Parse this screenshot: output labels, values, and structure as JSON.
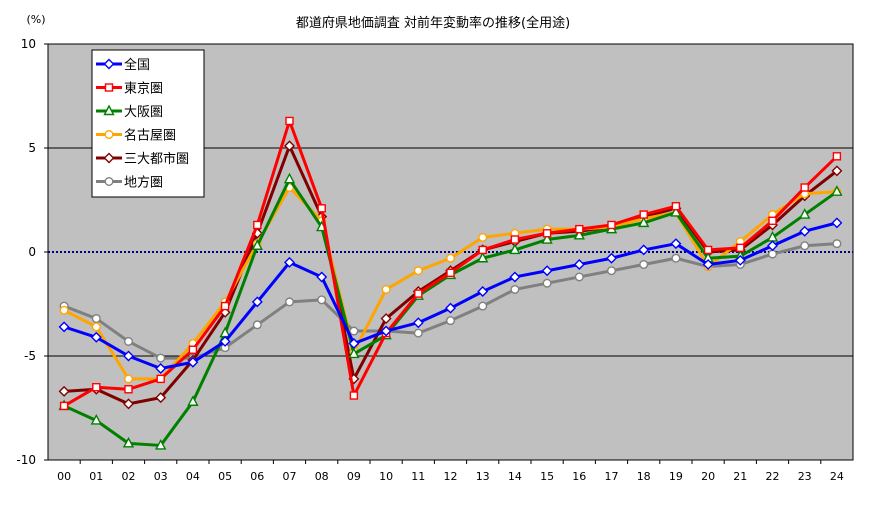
{
  "chart_data": {
    "type": "line",
    "title": "都道府県地価調査 対前年変動率の推移(全用途)",
    "ylabel": "(%)",
    "xlabel": "",
    "ylim": [
      -10,
      10
    ],
    "yticks": [
      10,
      5,
      0,
      -5,
      -10
    ],
    "x": [
      "00",
      "01",
      "02",
      "03",
      "04",
      "05",
      "06",
      "07",
      "08",
      "09",
      "10",
      "11",
      "12",
      "13",
      "14",
      "15",
      "16",
      "17",
      "18",
      "19",
      "20",
      "21",
      "22",
      "23",
      "24"
    ],
    "grid": true,
    "zero_line": "dotted-navy",
    "legend_position": "top-left",
    "plot_background": "#c0c0c0",
    "series": [
      {
        "name": "全国",
        "color": "#0000ff",
        "marker": "diamond",
        "values": [
          -3.6,
          -4.1,
          -5.0,
          -5.6,
          -5.3,
          -4.3,
          -2.4,
          -0.5,
          -1.2,
          -4.4,
          -3.8,
          -3.4,
          -2.7,
          -1.9,
          -1.2,
          -0.9,
          -0.6,
          -0.3,
          0.1,
          0.4,
          -0.6,
          -0.4,
          0.3,
          1.0,
          1.4
        ]
      },
      {
        "name": "東京圏",
        "color": "#ff0000",
        "marker": "square",
        "values": [
          -7.4,
          -6.5,
          -6.6,
          -6.1,
          -4.7,
          -2.6,
          1.3,
          6.3,
          2.1,
          -6.9,
          -3.9,
          -2.0,
          -1.0,
          0.1,
          0.6,
          0.9,
          1.1,
          1.3,
          1.8,
          2.2,
          0.1,
          0.2,
          1.5,
          3.1,
          4.6
        ]
      },
      {
        "name": "大阪圏",
        "color": "#008000",
        "marker": "triangle",
        "values": [
          -7.4,
          -8.1,
          -9.2,
          -9.3,
          -7.2,
          -3.9,
          0.3,
          3.5,
          1.2,
          -4.9,
          -4.0,
          -2.1,
          -1.1,
          -0.3,
          0.1,
          0.6,
          0.8,
          1.1,
          1.4,
          1.9,
          -0.3,
          -0.2,
          0.7,
          1.8,
          2.9
        ]
      },
      {
        "name": "名古屋圏",
        "color": "#ffa500",
        "marker": "circle",
        "values": [
          -2.8,
          -3.6,
          -6.1,
          -6.1,
          -4.4,
          -2.4,
          0.4,
          3.1,
          1.5,
          -4.8,
          -1.8,
          -0.9,
          -0.3,
          0.7,
          0.9,
          1.1,
          1.1,
          1.2,
          1.6,
          1.9,
          -0.7,
          0.5,
          1.8,
          2.8,
          2.9
        ]
      },
      {
        "name": "三大都市圏",
        "color": "#800000",
        "marker": "diamond",
        "values": [
          -6.7,
          -6.6,
          -7.3,
          -7.0,
          -5.2,
          -2.9,
          0.9,
          5.1,
          1.7,
          -6.1,
          -3.2,
          -1.9,
          -0.9,
          0.1,
          0.5,
          0.9,
          1.0,
          1.2,
          1.7,
          2.1,
          0.0,
          0.1,
          1.3,
          2.7,
          3.9
        ]
      },
      {
        "name": "地方圏",
        "color": "#808080",
        "marker": "circle",
        "values": [
          -2.6,
          -3.2,
          -4.3,
          -5.1,
          -5.1,
          -4.6,
          -3.5,
          -2.4,
          -2.3,
          -3.8,
          -3.8,
          -3.9,
          -3.3,
          -2.6,
          -1.8,
          -1.5,
          -1.2,
          -0.9,
          -0.6,
          -0.3,
          -0.7,
          -0.6,
          -0.1,
          0.3,
          0.4
        ]
      }
    ]
  }
}
